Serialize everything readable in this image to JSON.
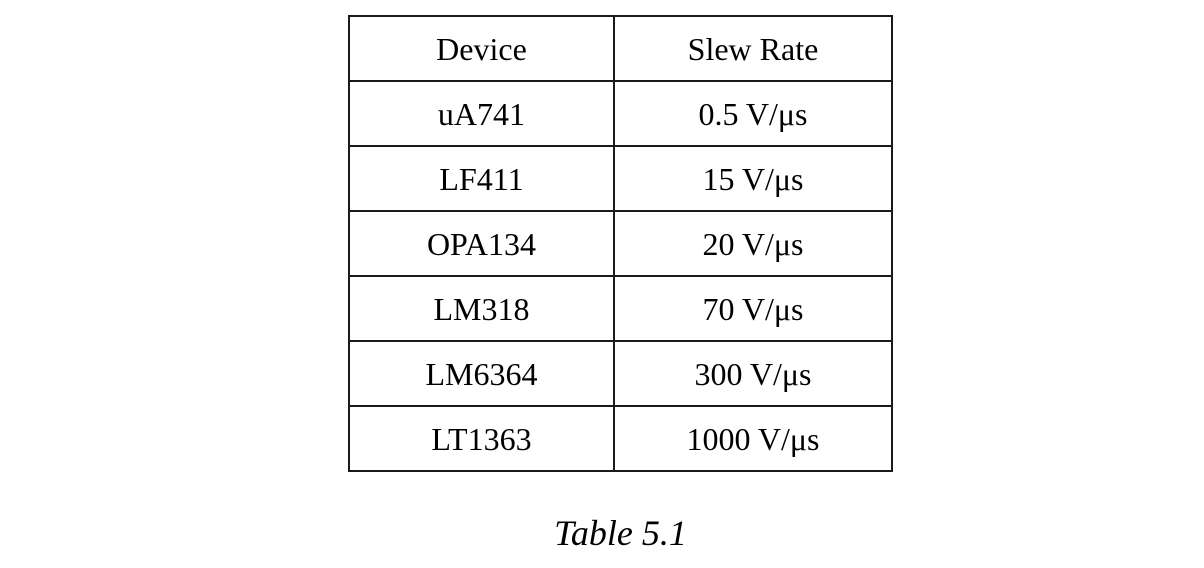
{
  "page": {
    "background_color": "#ffffff",
    "text_color": "#000000",
    "border_color": "#1a1a1a"
  },
  "table": {
    "headers": {
      "device": "Device",
      "slew_rate": "Slew Rate"
    },
    "rows": [
      {
        "device": "uA741",
        "slew_rate": "0.5 V/μs"
      },
      {
        "device": "LF411",
        "slew_rate": "15 V/μs"
      },
      {
        "device": "OPA134",
        "slew_rate": "20 V/μs"
      },
      {
        "device": "LM318",
        "slew_rate": "70 V/μs"
      },
      {
        "device": "LM6364",
        "slew_rate": "300 V/μs"
      },
      {
        "device": "LT1363",
        "slew_rate": "1000 V/μs"
      }
    ]
  },
  "caption": {
    "label": "Table 5.1"
  }
}
